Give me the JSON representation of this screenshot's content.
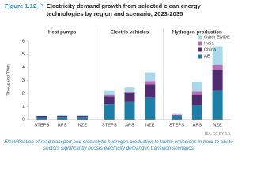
{
  "chart_data": {
    "type": "bar",
    "stacked": true,
    "figure_label": "Figure 1.12",
    "title": "Electricity demand growth from selected clean energy technologies by region and scenario, 2023-2035",
    "y_label": "Thousand TWh",
    "ylim": [
      0,
      6
    ],
    "yticks": [
      0,
      1,
      2,
      3,
      4,
      5,
      6
    ],
    "grid": false,
    "series": [
      {
        "name": "AE",
        "color": "#1b7fa8"
      },
      {
        "name": "China",
        "color": "#4e2c6e"
      },
      {
        "name": "India",
        "color": "#b46fb5"
      },
      {
        "name": "Other EMDE",
        "color": "#a9d9ea"
      }
    ],
    "legend": "top-right",
    "panels": [
      {
        "title": "Heat pumps",
        "categories": [
          "STEPS",
          "APS",
          "NZE"
        ],
        "values": [
          [
            0.15,
            0.17,
            0.17
          ],
          [
            0.1,
            0.11,
            0.11
          ],
          [
            0.02,
            0.02,
            0.02
          ],
          [
            0.05,
            0.06,
            0.06
          ]
        ]
      },
      {
        "title": "Electric vehicles",
        "categories": [
          "STEPS",
          "APS",
          "NZE"
        ],
        "values": [
          [
            1.2,
            1.35,
            1.7
          ],
          [
            0.6,
            0.65,
            1.0
          ],
          [
            0.1,
            0.12,
            0.25
          ],
          [
            0.3,
            0.35,
            0.65
          ]
        ]
      },
      {
        "title": "Hydrogen production",
        "categories": [
          "STEPS",
          "APS",
          "NZE"
        ],
        "values": [
          [
            0.25,
            1.1,
            2.2
          ],
          [
            0.1,
            0.8,
            1.6
          ],
          [
            0.03,
            0.25,
            0.4
          ],
          [
            0.07,
            0.75,
            1.4
          ]
        ]
      }
    ],
    "source": "IEA. CC BY 4.0.",
    "caption": "Electrification of road transport and electrolytic hydrogen production to tackle emissions in hard-to-abate sectors significantly boosts electricity demand in transition scenarios"
  }
}
